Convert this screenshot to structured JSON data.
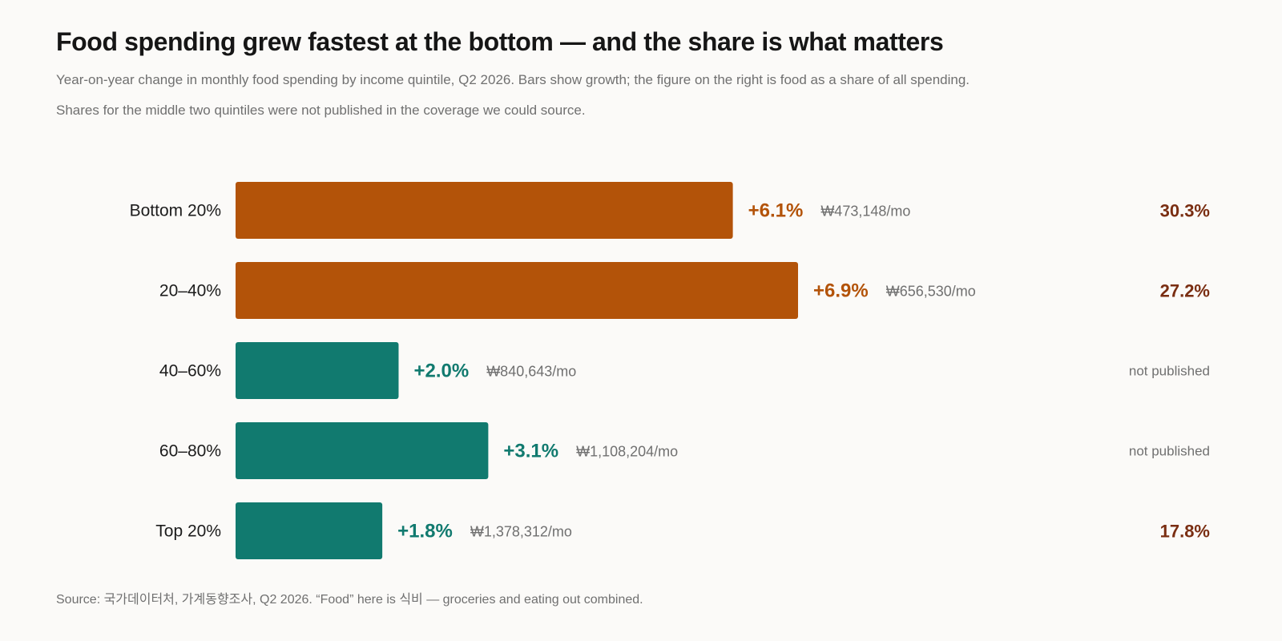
{
  "chart_data": {
    "type": "bar",
    "orientation": "horizontal",
    "title": "Food spending grew fastest at the bottom — and the share is what matters",
    "subtitle": "Year-on-year change in monthly food spending by income quintile, Q2 2026. Bars show growth; the figure on the right is food as a share of all spending.",
    "note": "Shares for the middle two quintiles were not published in the coverage we could source.",
    "source": "Source: 국가데이터처, 가계동향조사, Q2 2026. “Food” here is 식비 — groceries and eating out combined.",
    "categories": [
      "Bottom 20%",
      "20–40%",
      "40–60%",
      "60–80%",
      "Top 20%"
    ],
    "values": [
      6.1,
      6.9,
      2.0,
      3.1,
      1.8
    ],
    "value_labels": [
      "+6.1%",
      "+6.9%",
      "+2.0%",
      "+3.1%",
      "+1.8%"
    ],
    "spending_labels": [
      "₩473,148/mo",
      "₩656,530/mo",
      "₩840,643/mo",
      "₩1,108,204/mo",
      "₩1,378,312/mo"
    ],
    "share_labels": [
      "30.3%",
      "27.2%",
      "not published",
      "not published",
      "17.8%"
    ],
    "share_published": [
      true,
      true,
      false,
      false,
      true
    ],
    "highlight": [
      true,
      true,
      false,
      false,
      false
    ],
    "colors": {
      "highlight": "#b35309",
      "base": "#117a6f",
      "share": "#7a2e12",
      "muted": "#707070"
    },
    "xlim": [
      0,
      6.9
    ]
  }
}
